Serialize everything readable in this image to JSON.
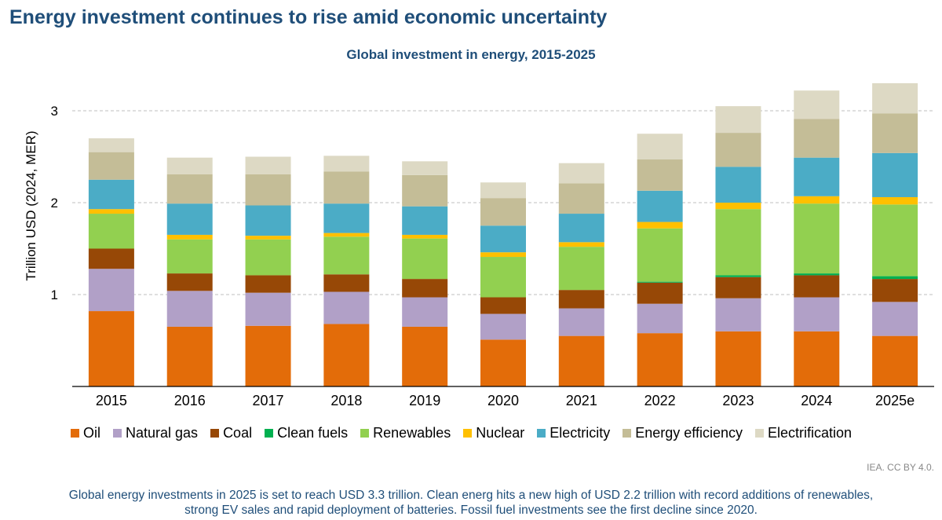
{
  "headline": "Energy investment continues to rise amid economic uncertainty",
  "source": "IEA. CC BY 4.0.",
  "caption_line1": "Global energy investments in 2025 is set to reach USD 3.3 trillion. Clean energ hits a new high of USD 2.2 trillion with record additions of renewables,",
  "caption_line2": "strong EV sales and rapid deployment of batteries. Fossil fuel investments see the first decline since 2020.",
  "chart_data": {
    "type": "bar",
    "stacked": true,
    "title": "Global investment in energy, 2015-2025",
    "xlabel": "",
    "ylabel": "Trillion USD (2024, MER)",
    "ylim": [
      0,
      3.3
    ],
    "yticks": [
      1,
      2,
      3
    ],
    "grid": "horizontal dashed",
    "legend_position": "bottom",
    "categories": [
      "2015",
      "2016",
      "2017",
      "2018",
      "2019",
      "2020",
      "2021",
      "2022",
      "2023",
      "2024",
      "2025e"
    ],
    "series": [
      {
        "name": "Oil",
        "color": "#e36c09",
        "values": [
          0.82,
          0.65,
          0.66,
          0.68,
          0.65,
          0.51,
          0.55,
          0.58,
          0.6,
          0.6,
          0.55
        ]
      },
      {
        "name": "Natural gas",
        "color": "#b1a0c7",
        "values": [
          0.46,
          0.39,
          0.36,
          0.35,
          0.32,
          0.28,
          0.3,
          0.32,
          0.36,
          0.37,
          0.37
        ]
      },
      {
        "name": "Coal",
        "color": "#974806",
        "values": [
          0.22,
          0.19,
          0.19,
          0.19,
          0.2,
          0.18,
          0.2,
          0.23,
          0.23,
          0.24,
          0.25
        ]
      },
      {
        "name": "Clean fuels",
        "color": "#00b050",
        "values": [
          0.0,
          0.0,
          0.0,
          0.0,
          0.0,
          0.0,
          0.0,
          0.01,
          0.02,
          0.02,
          0.03
        ]
      },
      {
        "name": "Renewables",
        "color": "#92d050",
        "values": [
          0.38,
          0.37,
          0.39,
          0.41,
          0.44,
          0.44,
          0.47,
          0.58,
          0.72,
          0.76,
          0.78
        ]
      },
      {
        "name": "Nuclear",
        "color": "#ffc000",
        "values": [
          0.05,
          0.05,
          0.04,
          0.04,
          0.04,
          0.05,
          0.05,
          0.07,
          0.07,
          0.08,
          0.08
        ]
      },
      {
        "name": "Electricity",
        "color": "#4bacc6",
        "values": [
          0.32,
          0.34,
          0.33,
          0.32,
          0.31,
          0.29,
          0.31,
          0.34,
          0.39,
          0.42,
          0.48
        ]
      },
      {
        "name": "Energy efficiency",
        "color": "#c4bd97",
        "values": [
          0.3,
          0.32,
          0.34,
          0.35,
          0.34,
          0.3,
          0.33,
          0.34,
          0.37,
          0.42,
          0.43
        ]
      },
      {
        "name": "Electrification",
        "color": "#ddd9c4",
        "values": [
          0.15,
          0.18,
          0.19,
          0.17,
          0.15,
          0.17,
          0.22,
          0.28,
          0.29,
          0.31,
          0.33
        ]
      }
    ]
  }
}
